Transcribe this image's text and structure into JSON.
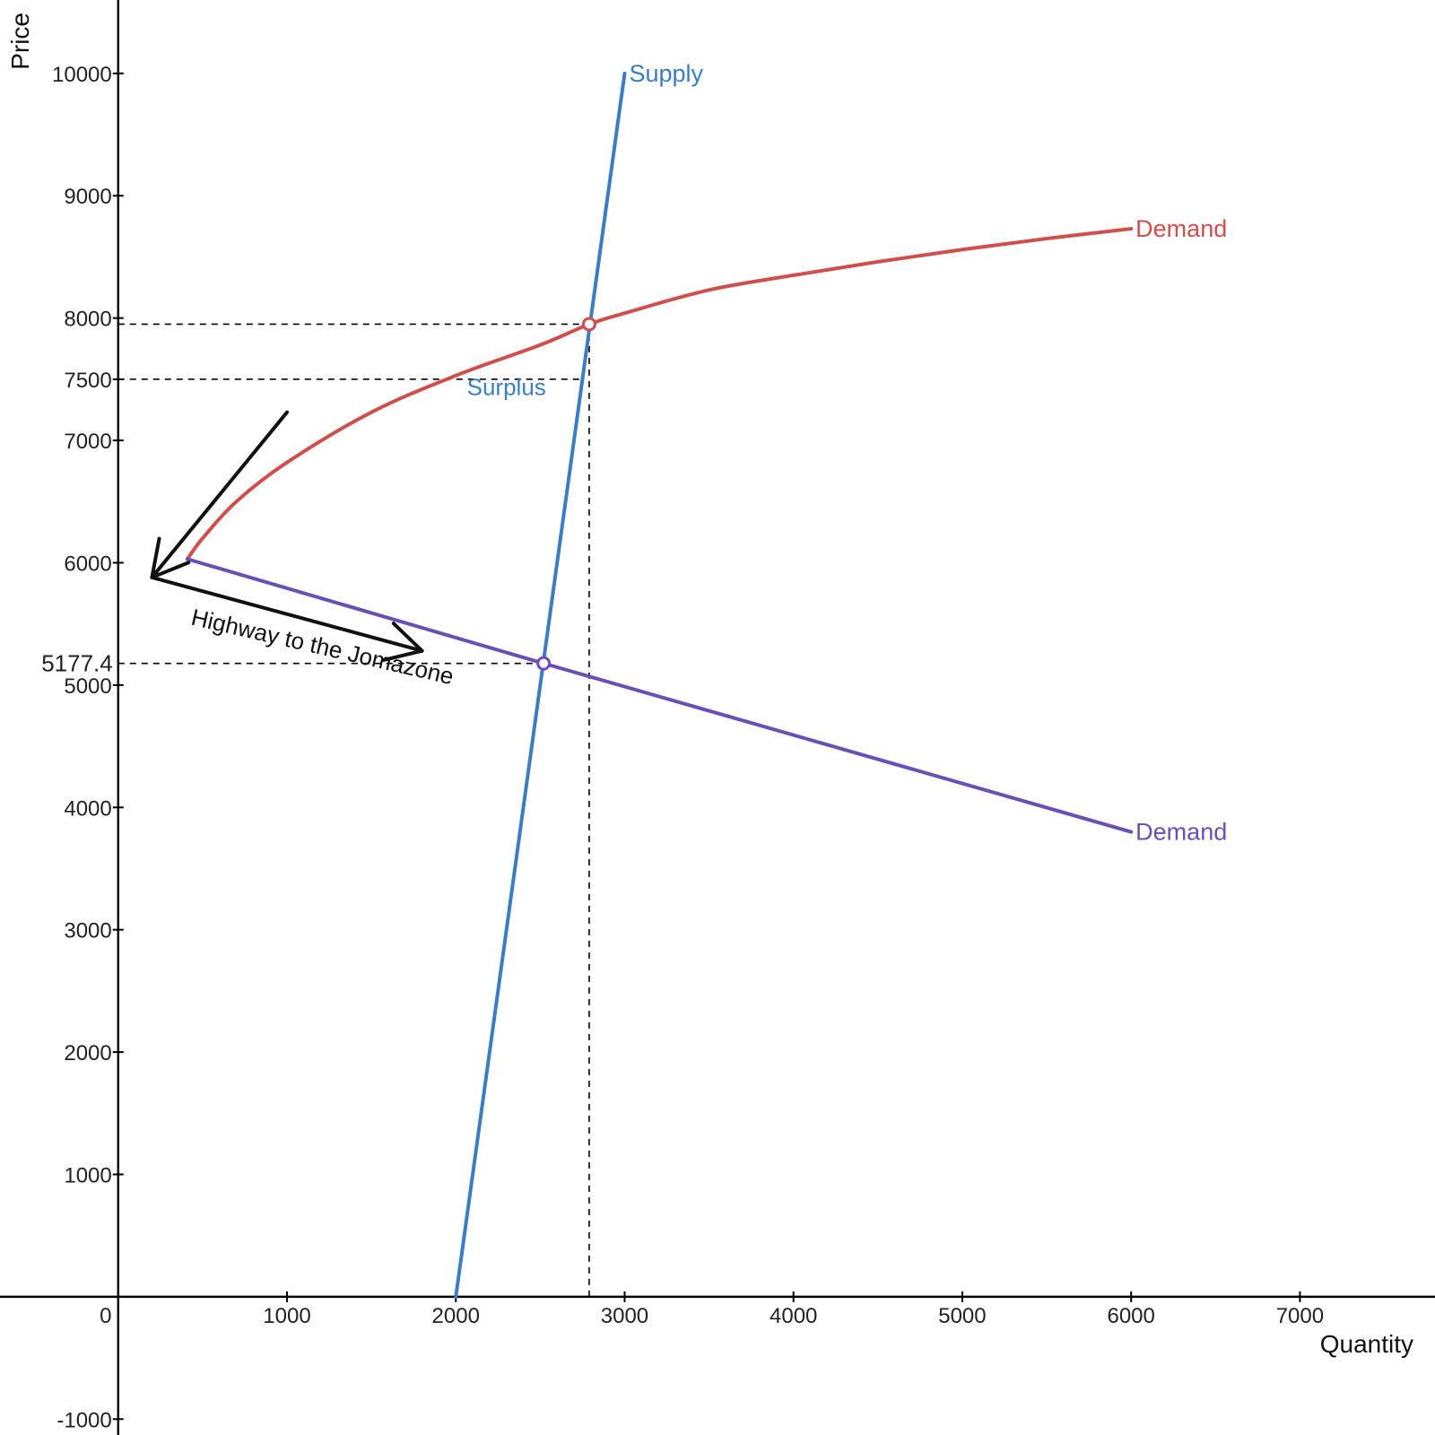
{
  "chart_data": {
    "type": "line",
    "title": "",
    "xlabel": "Quantity",
    "ylabel": "Price",
    "xlim": [
      -700,
      7800
    ],
    "ylim": [
      -1130,
      10600
    ],
    "x_ticks": [
      0,
      1000,
      2000,
      3000,
      4000,
      5000,
      6000,
      7000
    ],
    "x_tick_labels": [
      "0",
      "1000",
      "2000",
      "3000",
      "4000",
      "5000",
      "6000",
      "7000"
    ],
    "y_ticks": [
      -1000,
      1000,
      2000,
      3000,
      4000,
      5000,
      6000,
      7000,
      7500,
      8000,
      9000,
      10000
    ],
    "y_tick_labels": [
      "-1000",
      "1000",
      "2000",
      "3000",
      "4000",
      "5000",
      "6000",
      "7000",
      "7500",
      "8000",
      "9000",
      "10000"
    ],
    "grid": false,
    "colors": {
      "supply": "#3a7dc0",
      "demand_red": "#cf4f4d",
      "demand_purple": "#6a4fb4",
      "axis": "#000000",
      "annotation": "#111111"
    },
    "series": [
      {
        "name": "Supply",
        "label": "Supply",
        "color": "#3a7dc0",
        "x": [
          2000,
          3000
        ],
        "y": [
          0,
          10000
        ]
      },
      {
        "name": "Demand",
        "label": "Demand",
        "color": "#cf4f4d",
        "x": [
          410,
          500,
          700,
          1000,
          1500,
          2000,
          2500,
          2790,
          3000,
          3500,
          4000,
          4500,
          5000,
          5500,
          6000
        ],
        "y": [
          6030,
          6200,
          6500,
          6820,
          7230,
          7530,
          7780,
          7950,
          8040,
          8230,
          8350,
          8460,
          8560,
          8650,
          8730
        ]
      },
      {
        "name": "Demand",
        "label": "Demand",
        "color": "#6a4fb4",
        "x": [
          410,
          2520,
          6000
        ],
        "y": [
          6030,
          5177.4,
          3800
        ]
      }
    ],
    "points": [
      {
        "series": 1,
        "x": 2790,
        "y": 7950
      },
      {
        "series": 2,
        "x": 2520,
        "y": 5177.4
      }
    ],
    "reference_lines": [
      {
        "type": "h",
        "y": 7950,
        "x_from": 0,
        "x_to": 2790
      },
      {
        "type": "h",
        "y": 7500,
        "x_from": 0,
        "x_to": 2740
      },
      {
        "type": "v",
        "x": 2790,
        "y_from": 0,
        "y_to": 7950
      },
      {
        "type": "h",
        "y": 5177.4,
        "x_from": 0,
        "x_to": 2520
      }
    ],
    "value_label": {
      "text": "5177.4",
      "y": 5177.4,
      "color": "#6a4fb4"
    },
    "annotations": [
      {
        "text": "Surplus",
        "x": 2300,
        "y": 7370,
        "color": "#3a7dc0"
      },
      {
        "text": "Highway to the Jomazone",
        "x": 1200,
        "y": 5250,
        "color": "#111111",
        "rotation": 13
      }
    ],
    "arrows": [
      {
        "from": [
          1000,
          7230
        ],
        "to": [
          200,
          5880
        ]
      },
      {
        "from": [
          200,
          5880
        ],
        "to": [
          1800,
          5280
        ]
      }
    ]
  }
}
